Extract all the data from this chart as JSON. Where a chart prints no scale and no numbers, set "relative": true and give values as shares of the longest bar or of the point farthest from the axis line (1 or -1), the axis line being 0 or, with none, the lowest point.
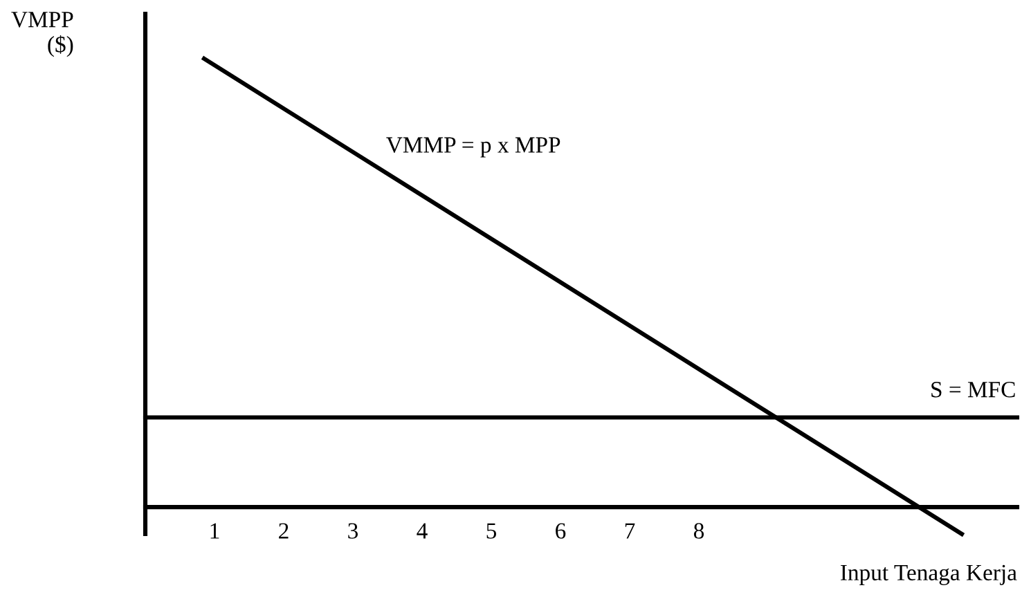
{
  "chart_data": {
    "type": "line",
    "relative": true,
    "xlabel": "Input Tenaga Kerja",
    "ylabel": "VMPP\n($)",
    "xlim": [
      0,
      12.6
    ],
    "xticks": [
      1,
      2,
      3,
      4,
      5,
      6,
      7,
      8
    ],
    "grid": false,
    "legend": false,
    "marker": "none",
    "line_style": "solid",
    "series": [
      {
        "name": "VMMP = p x MPP",
        "color": "#000000",
        "x": [
          0.85,
          11.8
        ],
        "values": [
          1,
          -0.06
        ]
      },
      {
        "name": "S = MFC",
        "color": "#000000",
        "x": [
          0,
          12.6
        ],
        "values": [
          0.2,
          0.2
        ]
      }
    ]
  }
}
